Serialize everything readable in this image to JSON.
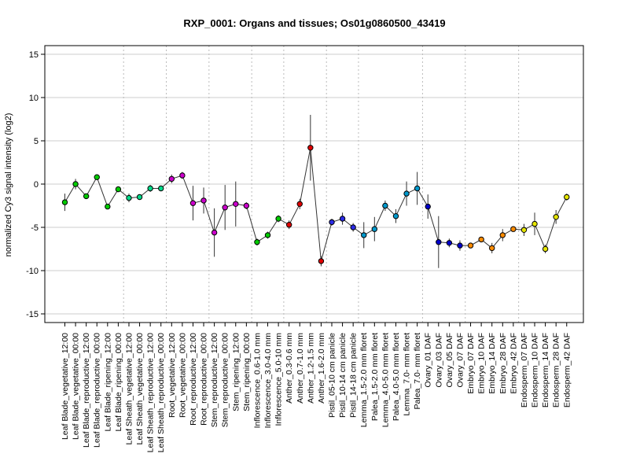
{
  "chart_data": {
    "type": "line",
    "title": "RXP_0001: Organs and tissues; Os01g0860500_43419",
    "xlabel": "",
    "ylabel": "normalized Cy3 signal intensity (log2)",
    "ylim": [
      -16,
      16
    ],
    "yticks": [
      -15,
      -10,
      -5,
      0,
      5,
      10,
      15
    ],
    "grid": true,
    "categories": [
      "Leaf Blade_vegetative_12:00",
      "Leaf Blade_vegetative_00:00",
      "Leaf Blade_reproductive_12:00",
      "Leaf Blade_reproductive_00:00",
      "Leaf Blade_ripening_12:00",
      "Leaf Blade_ripening_00:00",
      "Leaf Sheath_vegetative_12:00",
      "Leaf Sheath_vegetative_00:00",
      "Leaf Sheath_reproductive_12:00",
      "Leaf Sheath_reproductive_00:00",
      "Root_vegetative_12:00",
      "Root_vegetative_00:00",
      "Root_reproductive_12:00",
      "Root_reproductive_00:00",
      "Stem_reproductive_12:00",
      "Stem_reproductive_00:00",
      "Stem_ripening_12:00",
      "Stem_ripening_00:00",
      "Inflorescence_0.6-1.0 mm",
      "Inflorescence_3.0-4.0 mm",
      "Inflorescence_5.0-10 mm",
      "Anther_0.3-0.6 mm",
      "Anther_0.7-1.0 mm",
      "Anther_1.2-1.5 mm",
      "Anther_1.6-2.0 mm",
      "Pistil_05-10 cm panicle",
      "Pistil_10-14 cm panicle",
      "Pistil_14-18 cm panicle",
      "Lemma_1.5-2.0 mm floret",
      "Palea_1.5-2.0 mm floret",
      "Lemma_4.0-5.0 mm floret",
      "Palea_4.0-5.0 mm floret",
      "Lemma_7.0- mm floret",
      "Palea_7.0- mm floret",
      "Ovary_01 DAF",
      "Ovary_03 DAF",
      "Ovary_05 DAF",
      "Ovary_07 DAF",
      "Embryo_07 DAF",
      "Embryo_10 DAF",
      "Embryo_14 DAF",
      "Embryo_28 DAF",
      "Embryo_42 DAF",
      "Endosperm_07 DAF",
      "Endosperm_10 DAF",
      "Endosperm_14 DAF",
      "Endosperm_28 DAF",
      "Endosperm_42 DAF"
    ],
    "series": [
      {
        "values": [
          -2.1,
          0.0,
          -1.4,
          0.8,
          -2.6,
          -0.6,
          -1.6,
          -1.5,
          -0.5,
          -0.5,
          0.6,
          1.0,
          -2.2,
          -1.9,
          -5.6,
          -2.7,
          -2.3,
          -2.5,
          -6.7,
          -5.9,
          -4.0,
          -4.7,
          -2.3,
          4.2,
          -8.9,
          -4.4,
          -4.0,
          -5.0,
          -5.9,
          -5.2,
          -2.5,
          -3.7,
          -1.1,
          -0.5,
          -2.6,
          -6.7,
          -6.8,
          -7.1,
          -7.1,
          -6.4,
          -7.4,
          -5.9,
          -5.2,
          -5.3,
          -4.6,
          -7.5,
          -3.8,
          -1.5
        ],
        "errors": [
          1.0,
          0.6,
          0.3,
          0.3,
          0.3,
          0.3,
          0.5,
          0.3,
          0.4,
          0.3,
          0.5,
          0.4,
          2.0,
          1.5,
          2.8,
          2.6,
          2.6,
          0.4,
          0.4,
          0.4,
          0.4,
          0.5,
          0.6,
          3.8,
          0.6,
          0.4,
          0.7,
          0.5,
          1.5,
          1.4,
          0.6,
          0.8,
          1.4,
          1.9,
          1.4,
          3.0,
          0.5,
          0.6,
          0.3,
          0.3,
          0.6,
          0.7,
          0.2,
          0.7,
          1.3,
          0.5,
          0.8,
          0.4
        ],
        "colors": [
          "#00CC00",
          "#00CC00",
          "#00CC00",
          "#00CC00",
          "#00CC00",
          "#00CC00",
          "#00D98A",
          "#00D98A",
          "#00D98A",
          "#00D98A",
          "#CC00CC",
          "#CC00CC",
          "#CC00CC",
          "#CC00CC",
          "#CC00CC",
          "#CC00CC",
          "#CC00CC",
          "#CC00CC",
          "#00CC00",
          "#00CC00",
          "#00CC00",
          "#E00000",
          "#E00000",
          "#E00000",
          "#E00000",
          "#2A2AE6",
          "#2A2AE6",
          "#2A2AE6",
          "#0099CC",
          "#0099CC",
          "#0099CC",
          "#0099CC",
          "#0099CC",
          "#0099CC",
          "#0000CC",
          "#0000CC",
          "#0000CC",
          "#0000CC",
          "#FF8C00",
          "#FF8C00",
          "#FF8C00",
          "#FF8C00",
          "#FF8C00",
          "#E6E600",
          "#E6E600",
          "#E6E600",
          "#E6E600",
          "#E6E600"
        ]
      }
    ],
    "group_separators_after_index": [
      5,
      9,
      13,
      17,
      20,
      24,
      27,
      33,
      37,
      42
    ]
  }
}
